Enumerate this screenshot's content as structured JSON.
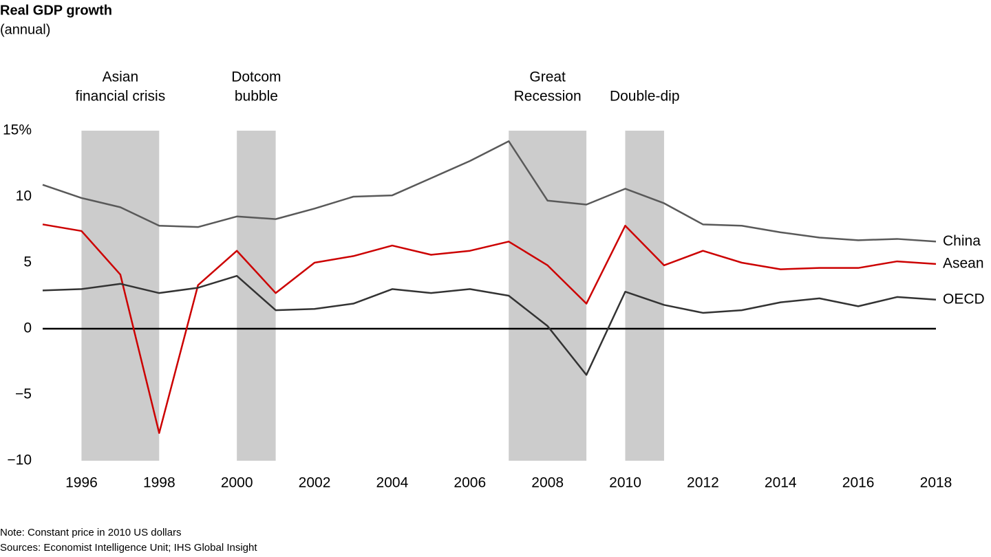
{
  "chart_data": {
    "type": "line",
    "title": "Real GDP growth",
    "subtitle": "(annual)",
    "x": [
      1995,
      1996,
      1997,
      1998,
      1999,
      2000,
      2001,
      2002,
      2003,
      2004,
      2005,
      2006,
      2007,
      2008,
      2009,
      2010,
      2011,
      2012,
      2013,
      2014,
      2015,
      2016,
      2017,
      2018
    ],
    "series": [
      {
        "name": "China",
        "color": "#595959",
        "values": [
          10.9,
          9.9,
          9.2,
          7.8,
          7.7,
          8.5,
          8.3,
          9.1,
          10.0,
          10.1,
          11.4,
          12.7,
          14.2,
          9.7,
          9.4,
          10.6,
          9.5,
          7.9,
          7.8,
          7.3,
          6.9,
          6.7,
          6.8,
          6.6
        ]
      },
      {
        "name": "Asean",
        "color": "#cc0000",
        "values": [
          7.9,
          7.4,
          4.1,
          -7.9,
          3.3,
          5.9,
          2.7,
          5.0,
          5.5,
          6.3,
          5.6,
          5.9,
          6.6,
          4.8,
          1.9,
          7.8,
          4.8,
          5.9,
          5.0,
          4.5,
          4.6,
          4.6,
          5.1,
          4.9
        ]
      },
      {
        "name": "OECD",
        "color": "#333333",
        "values": [
          2.9,
          3.0,
          3.4,
          2.7,
          3.1,
          4.0,
          1.4,
          1.5,
          1.9,
          3.0,
          2.7,
          3.0,
          2.5,
          0.2,
          -3.5,
          2.8,
          1.8,
          1.2,
          1.4,
          2.0,
          2.3,
          1.7,
          2.4,
          2.2
        ]
      }
    ],
    "shaded_regions": [
      {
        "label": [
          "Asian",
          "financial crisis"
        ],
        "start": 1996,
        "end": 1998
      },
      {
        "label": [
          "Dotcom",
          "bubble"
        ],
        "start": 2000,
        "end": 2001
      },
      {
        "label": [
          "Great",
          "Recession"
        ],
        "start": 2007,
        "end": 2009
      },
      {
        "label": [
          "Double-dip"
        ],
        "start": 2010,
        "end": 2011
      }
    ],
    "shade_color": "#cccccc",
    "xlim": [
      1995,
      2018
    ],
    "xticks": [
      1996,
      1998,
      2000,
      2002,
      2004,
      2006,
      2008,
      2010,
      2012,
      2014,
      2016,
      2018
    ],
    "ylim": [
      -10,
      15
    ],
    "yticks": [
      {
        "value": -10,
        "label": "−10"
      },
      {
        "value": -5,
        "label": "−5"
      },
      0,
      5,
      10,
      {
        "value": 15,
        "label": "15%"
      }
    ],
    "zero_line": true,
    "notes": [
      "Note: Constant price in 2010 US dollars",
      "Sources: Economist Intelligence Unit; IHS Global Insight"
    ]
  }
}
